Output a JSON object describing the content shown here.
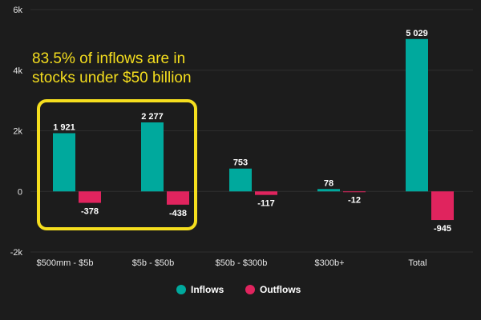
{
  "chart_data": {
    "type": "bar",
    "categories": [
      "$500mm - $5b",
      "$5b - $50b",
      "$50b - $300b",
      "$300b+",
      "Total"
    ],
    "series": [
      {
        "name": "Inflows",
        "values": [
          1921,
          2277,
          753,
          78,
          5029
        ],
        "labels": [
          "1 921",
          "2 277",
          "753",
          "78",
          "5 029"
        ],
        "color": "#00a99d"
      },
      {
        "name": "Outflows",
        "values": [
          -378,
          -438,
          -117,
          -12,
          -945
        ],
        "labels": [
          "-378",
          "-438",
          "-117",
          "-12",
          "-945"
        ],
        "color": "#e0245e"
      }
    ],
    "ylim": [
      -2000,
      6000
    ],
    "yticks": [
      {
        "value": 6000,
        "label": "6k"
      },
      {
        "value": 4000,
        "label": "4k"
      },
      {
        "value": 2000,
        "label": "2k"
      },
      {
        "value": 0,
        "label": "0"
      },
      {
        "value": -2000,
        "label": "-2k"
      }
    ],
    "grid": true,
    "legend": "bottom-center",
    "annotation": {
      "lines": [
        "83.5% of inflows are in",
        "stocks under $50 billion"
      ],
      "color": "#f5de1e",
      "highlight_categories": [
        "$500mm - $5b",
        "$5b - $50b"
      ]
    },
    "background": "#1c1c1c",
    "grid_color": "#2e2e2e",
    "text_color": "#e6e6e6"
  }
}
